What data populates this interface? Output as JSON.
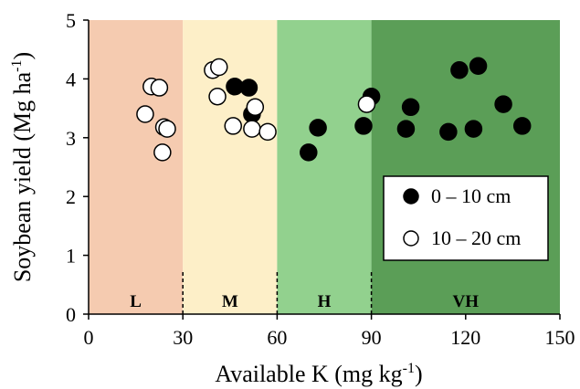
{
  "chart_data": {
    "type": "scatter",
    "xlabel": "Available K (mg kg",
    "xlabel_sup": "-1",
    "xlabel_tail": ")",
    "ylabel": "Soybean yield (Mg ha",
    "ylabel_sup": "-1",
    "ylabel_tail": ")",
    "xlim": [
      0,
      150
    ],
    "ylim": [
      0,
      5
    ],
    "xticks": [
      0,
      30,
      60,
      90,
      120,
      150
    ],
    "yticks": [
      0,
      1,
      2,
      3,
      4,
      5
    ],
    "zones": [
      {
        "label": "L",
        "x0": 0,
        "x1": 30,
        "color": "#f5cbb0"
      },
      {
        "label": "M",
        "x0": 30,
        "x1": 60,
        "color": "#fdefc8"
      },
      {
        "label": "H",
        "x0": 60,
        "x1": 90,
        "color": "#92d18e"
      },
      {
        "label": "VH",
        "x0": 90,
        "x1": 150,
        "color": "#5b9e57"
      }
    ],
    "legend_position": "right",
    "series": [
      {
        "name": "0 – 10 cm",
        "marker": "filled",
        "color": "#000000",
        "points": [
          [
            46.5,
            3.87
          ],
          [
            51.0,
            3.85
          ],
          [
            52.0,
            3.4
          ],
          [
            70.0,
            2.75
          ],
          [
            73.0,
            3.17
          ],
          [
            87.5,
            3.2
          ],
          [
            90.0,
            3.7
          ],
          [
            101.0,
            3.15
          ],
          [
            102.5,
            3.52
          ],
          [
            114.5,
            3.1
          ],
          [
            118.0,
            4.15
          ],
          [
            122.5,
            3.15
          ],
          [
            124.0,
            4.22
          ],
          [
            132.0,
            3.57
          ],
          [
            138.0,
            3.2
          ]
        ]
      },
      {
        "name": "10 – 20 cm",
        "marker": "open",
        "color": "#ffffff",
        "points": [
          [
            18.0,
            3.4
          ],
          [
            20.0,
            3.87
          ],
          [
            22.5,
            3.85
          ],
          [
            24.0,
            3.18
          ],
          [
            25.0,
            3.15
          ],
          [
            23.5,
            2.75
          ],
          [
            39.5,
            4.15
          ],
          [
            41.5,
            4.2
          ],
          [
            41.0,
            3.7
          ],
          [
            46.0,
            3.2
          ],
          [
            52.0,
            3.15
          ],
          [
            53.0,
            3.52
          ],
          [
            57.0,
            3.1
          ],
          [
            88.5,
            3.57
          ]
        ]
      }
    ]
  }
}
